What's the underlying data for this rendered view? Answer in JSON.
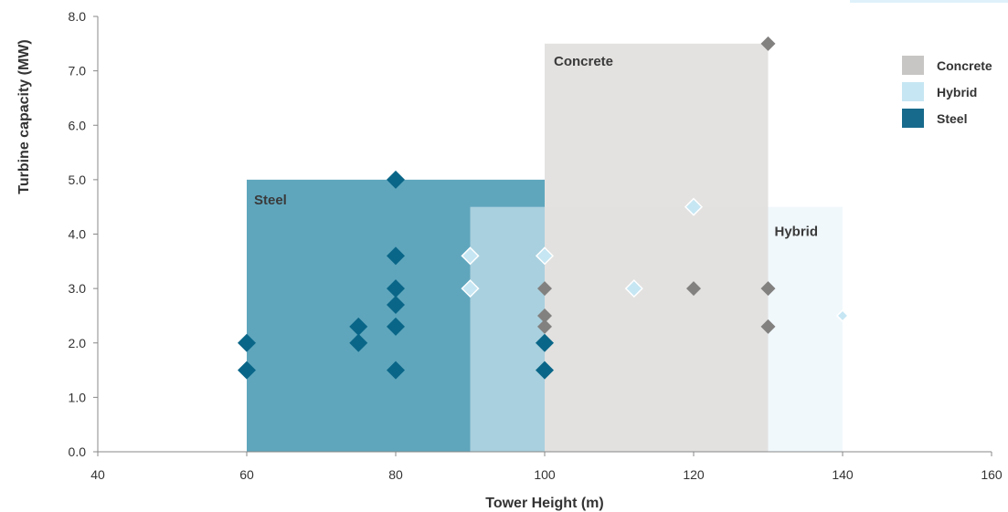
{
  "chart_data": {
    "type": "scatter",
    "xlabel": "Tower Height (m)",
    "ylabel": "Turbine capacity (MW)",
    "xlim": [
      40,
      160
    ],
    "ylim": [
      0.0,
      8.0
    ],
    "x_ticks": [
      "40",
      "60",
      "80",
      "100",
      "120",
      "140",
      "160"
    ],
    "y_ticks": [
      "0.0",
      "1.0",
      "2.0",
      "3.0",
      "4.0",
      "5.0",
      "6.0",
      "7.0",
      "8.0"
    ],
    "grid": false,
    "legend_position": "top-right",
    "legend": [
      {
        "label": "Concrete",
        "color": "#c8c6c4"
      },
      {
        "label": "Hybrid",
        "color": "#c6e6f3"
      },
      {
        "label": "Steel",
        "color": "#176a8c"
      }
    ],
    "regions": [
      {
        "name": "Steel",
        "label": "Steel",
        "x_range": [
          60,
          100
        ],
        "y_range": [
          0,
          5.0
        ],
        "color": "#5fa6bd"
      },
      {
        "name": "Hybrid",
        "label": "Hybrid",
        "x_range": [
          90,
          140
        ],
        "y_range": [
          0,
          4.5
        ],
        "color": "#e6f3fa"
      },
      {
        "name": "Concrete",
        "label": "Concrete",
        "x_range": [
          100,
          130
        ],
        "y_range": [
          0,
          7.5
        ],
        "color": "#dedcd9"
      }
    ],
    "series": [
      {
        "name": "Steel",
        "color": "#0a6688",
        "points": [
          [
            60,
            2.0
          ],
          [
            60,
            1.5
          ],
          [
            75,
            2.3
          ],
          [
            75,
            2.0
          ],
          [
            80,
            5.0
          ],
          [
            80,
            3.6
          ],
          [
            80,
            3.0
          ],
          [
            80,
            2.7
          ],
          [
            80,
            2.3
          ],
          [
            80,
            1.5
          ],
          [
            100,
            2.0
          ],
          [
            100,
            1.5
          ]
        ]
      },
      {
        "name": "Hybrid",
        "color": "#c6e6f3",
        "points": [
          [
            90,
            3.6
          ],
          [
            90,
            3.0
          ],
          [
            100,
            3.6
          ],
          [
            112,
            3.0
          ],
          [
            120,
            4.5
          ],
          [
            140,
            2.5
          ]
        ]
      },
      {
        "name": "Concrete",
        "color": "#838180",
        "points": [
          [
            100,
            3.0
          ],
          [
            100,
            2.5
          ],
          [
            100,
            2.3
          ],
          [
            120,
            3.0
          ],
          [
            130,
            7.5
          ],
          [
            130,
            3.0
          ],
          [
            130,
            2.3
          ]
        ]
      }
    ]
  }
}
